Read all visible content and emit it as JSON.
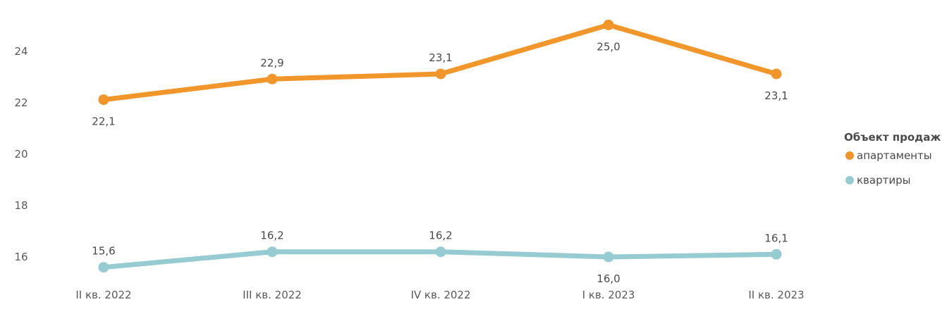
{
  "colors": {
    "apartments": "#F0962A",
    "flats": "#96CBD1"
  },
  "chart_data": {
    "type": "line",
    "categories": [
      "II кв. 2022",
      "III кв. 2022",
      "IV кв. 2022",
      "I кв. 2023",
      "II кв. 2023"
    ],
    "y_ticks": [
      "16",
      "18",
      "20",
      "22",
      "24"
    ],
    "ylim": [
      15.2,
      25.5
    ],
    "legend": {
      "title": "Объект продаж",
      "position": "right"
    },
    "series": [
      {
        "name": "апартаменты",
        "values": [
          22.1,
          22.9,
          23.1,
          25.0,
          23.1
        ],
        "labels": [
          "22,1",
          "22,9",
          "23,1",
          "25,0",
          "23,1"
        ]
      },
      {
        "name": "квартиры",
        "values": [
          15.6,
          16.2,
          16.2,
          16.0,
          16.1
        ],
        "labels": [
          "15,6",
          "16,2",
          "16,2",
          "16,0",
          "16,1"
        ]
      }
    ]
  }
}
